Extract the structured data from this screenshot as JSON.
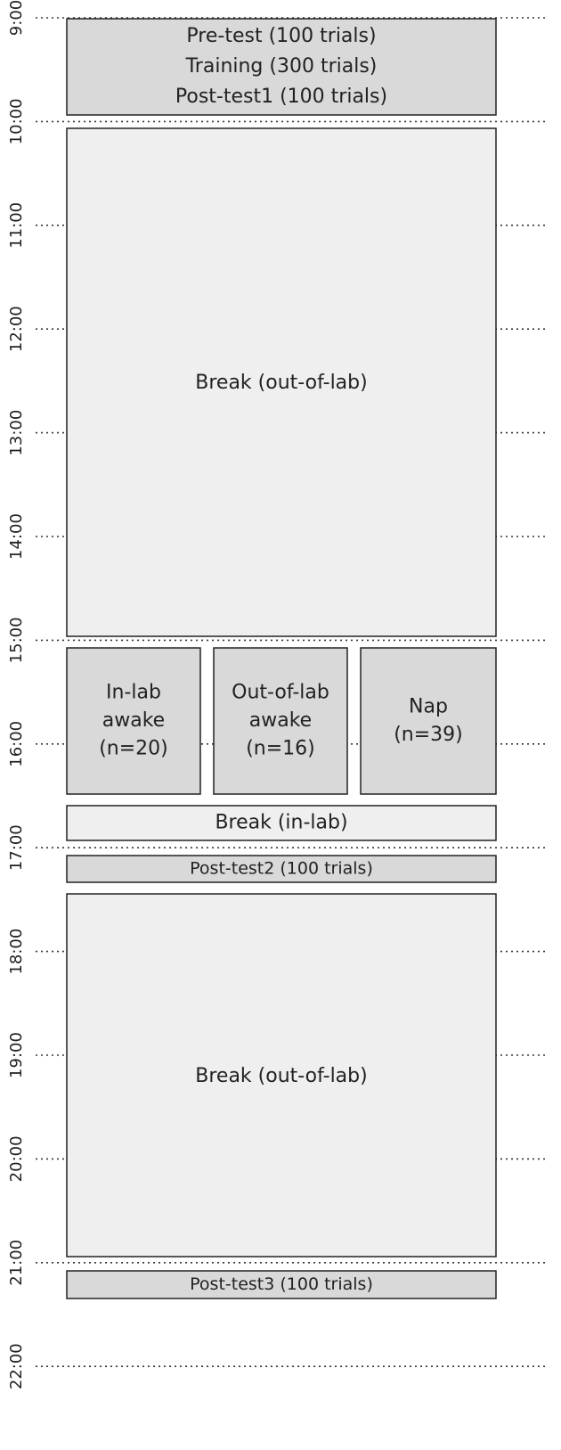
{
  "time_axis": {
    "labels": [
      "9:00",
      "10:00",
      "11:00",
      "12:00",
      "13:00",
      "14:00",
      "15:00",
      "16:00",
      "17:00",
      "18:00",
      "19:00",
      "20:00",
      "21:00",
      "22:00"
    ]
  },
  "blocks": [
    {
      "lines": [
        "Pre-test (100 trials)",
        "Training (300 trials)",
        "Post-test1 (100 trials)"
      ]
    },
    {
      "lines": [
        "Break (out-of-lab)"
      ]
    },
    {
      "lines": [
        "In-lab",
        "awake",
        "(n=20)"
      ]
    },
    {
      "lines": [
        "Out-of-lab",
        "awake",
        "(n=16)"
      ]
    },
    {
      "lines": [
        "Nap",
        "(n=39)"
      ]
    },
    {
      "lines": [
        "Break (in-lab)"
      ]
    },
    {
      "lines": [
        "Post-test2 (100 trials)"
      ]
    },
    {
      "lines": [
        "Break (out-of-lab)"
      ]
    },
    {
      "lines": [
        "Post-test3 (100 trials)"
      ]
    }
  ]
}
